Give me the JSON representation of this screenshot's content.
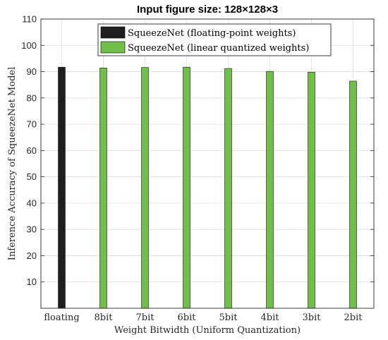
{
  "chart_data": {
    "type": "bar",
    "title": "Input figure size: 128×128×3",
    "xlabel": "Weight Bitwidth (Uniform Quantization)",
    "ylabel": "Inference Accuracy of SqueezeNet Model",
    "categories": [
      "floating",
      "8bit",
      "7bit",
      "6bit",
      "5bit",
      "4bit",
      "3bit",
      "2bit"
    ],
    "ylim": [
      0,
      110
    ],
    "yticks": [
      10,
      20,
      30,
      40,
      50,
      60,
      70,
      80,
      90,
      100,
      110
    ],
    "grid": true,
    "legend_position": "top-center",
    "series": [
      {
        "name": "SqueezeNet (floating-point weights)",
        "color": "#1f1f1f",
        "values": [
          91.7,
          null,
          null,
          null,
          null,
          null,
          null,
          null
        ]
      },
      {
        "name": "SqueezeNet (linear quantized weights)",
        "color": "#6fbf4a",
        "values": [
          null,
          91.4,
          91.6,
          91.7,
          91.2,
          90.1,
          89.8,
          86.4
        ]
      }
    ]
  }
}
